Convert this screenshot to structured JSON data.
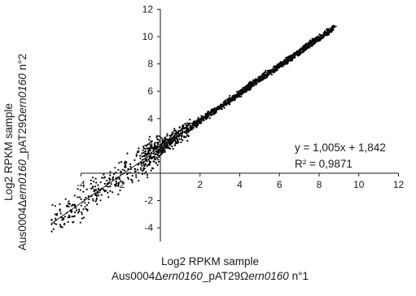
{
  "chart_data": {
    "type": "scatter",
    "xlabel_line1": "Log2 RPKM sample",
    "xlabel_line2_prefix": "Aus0004",
    "xlabel_line2_delta": "Δ",
    "xlabel_line2_gene": "ern0160",
    "xlabel_line2_mid": "_pAT29",
    "xlabel_line2_omega": "Ω",
    "xlabel_line2_gene2": "ern0160",
    "xlabel_line2_suffix": " n°1",
    "ylabel_line1": "Log2 RPKM sample",
    "ylabel_line2_prefix": "Aus0004",
    "ylabel_line2_delta": "Δ",
    "ylabel_line2_gene": "ern0160",
    "ylabel_line2_mid": "_pAT29",
    "ylabel_line2_omega": "Ω",
    "ylabel_line2_gene2": "ern0160",
    "ylabel_line2_suffix": " n°2",
    "xlim": [
      -4,
      12
    ],
    "ylim": [
      -5,
      12
    ],
    "x_ticks": [
      -4,
      -2,
      2,
      4,
      6,
      8,
      10,
      12
    ],
    "y_ticks": [
      -4,
      -2,
      2,
      4,
      6,
      8,
      10,
      12
    ],
    "x_tick_labels": [
      "-4",
      "-2",
      "2",
      "4",
      "6",
      "8",
      "10",
      "12"
    ],
    "y_tick_labels": [
      "-4",
      "-2",
      "2",
      "4",
      "6",
      "8",
      "10",
      "12"
    ],
    "grid": false,
    "regression": {
      "slope": 1.005,
      "intercept": 1.842,
      "x_range": [
        -5.5,
        8.9
      ]
    },
    "annotation_equation": "y = 1,005x + 1,842",
    "annotation_r2": "R² = 0,9871",
    "point_color": "#000000",
    "n_points": 1800,
    "spread_note": "dense cloud along regression line, wider scatter at low values"
  }
}
